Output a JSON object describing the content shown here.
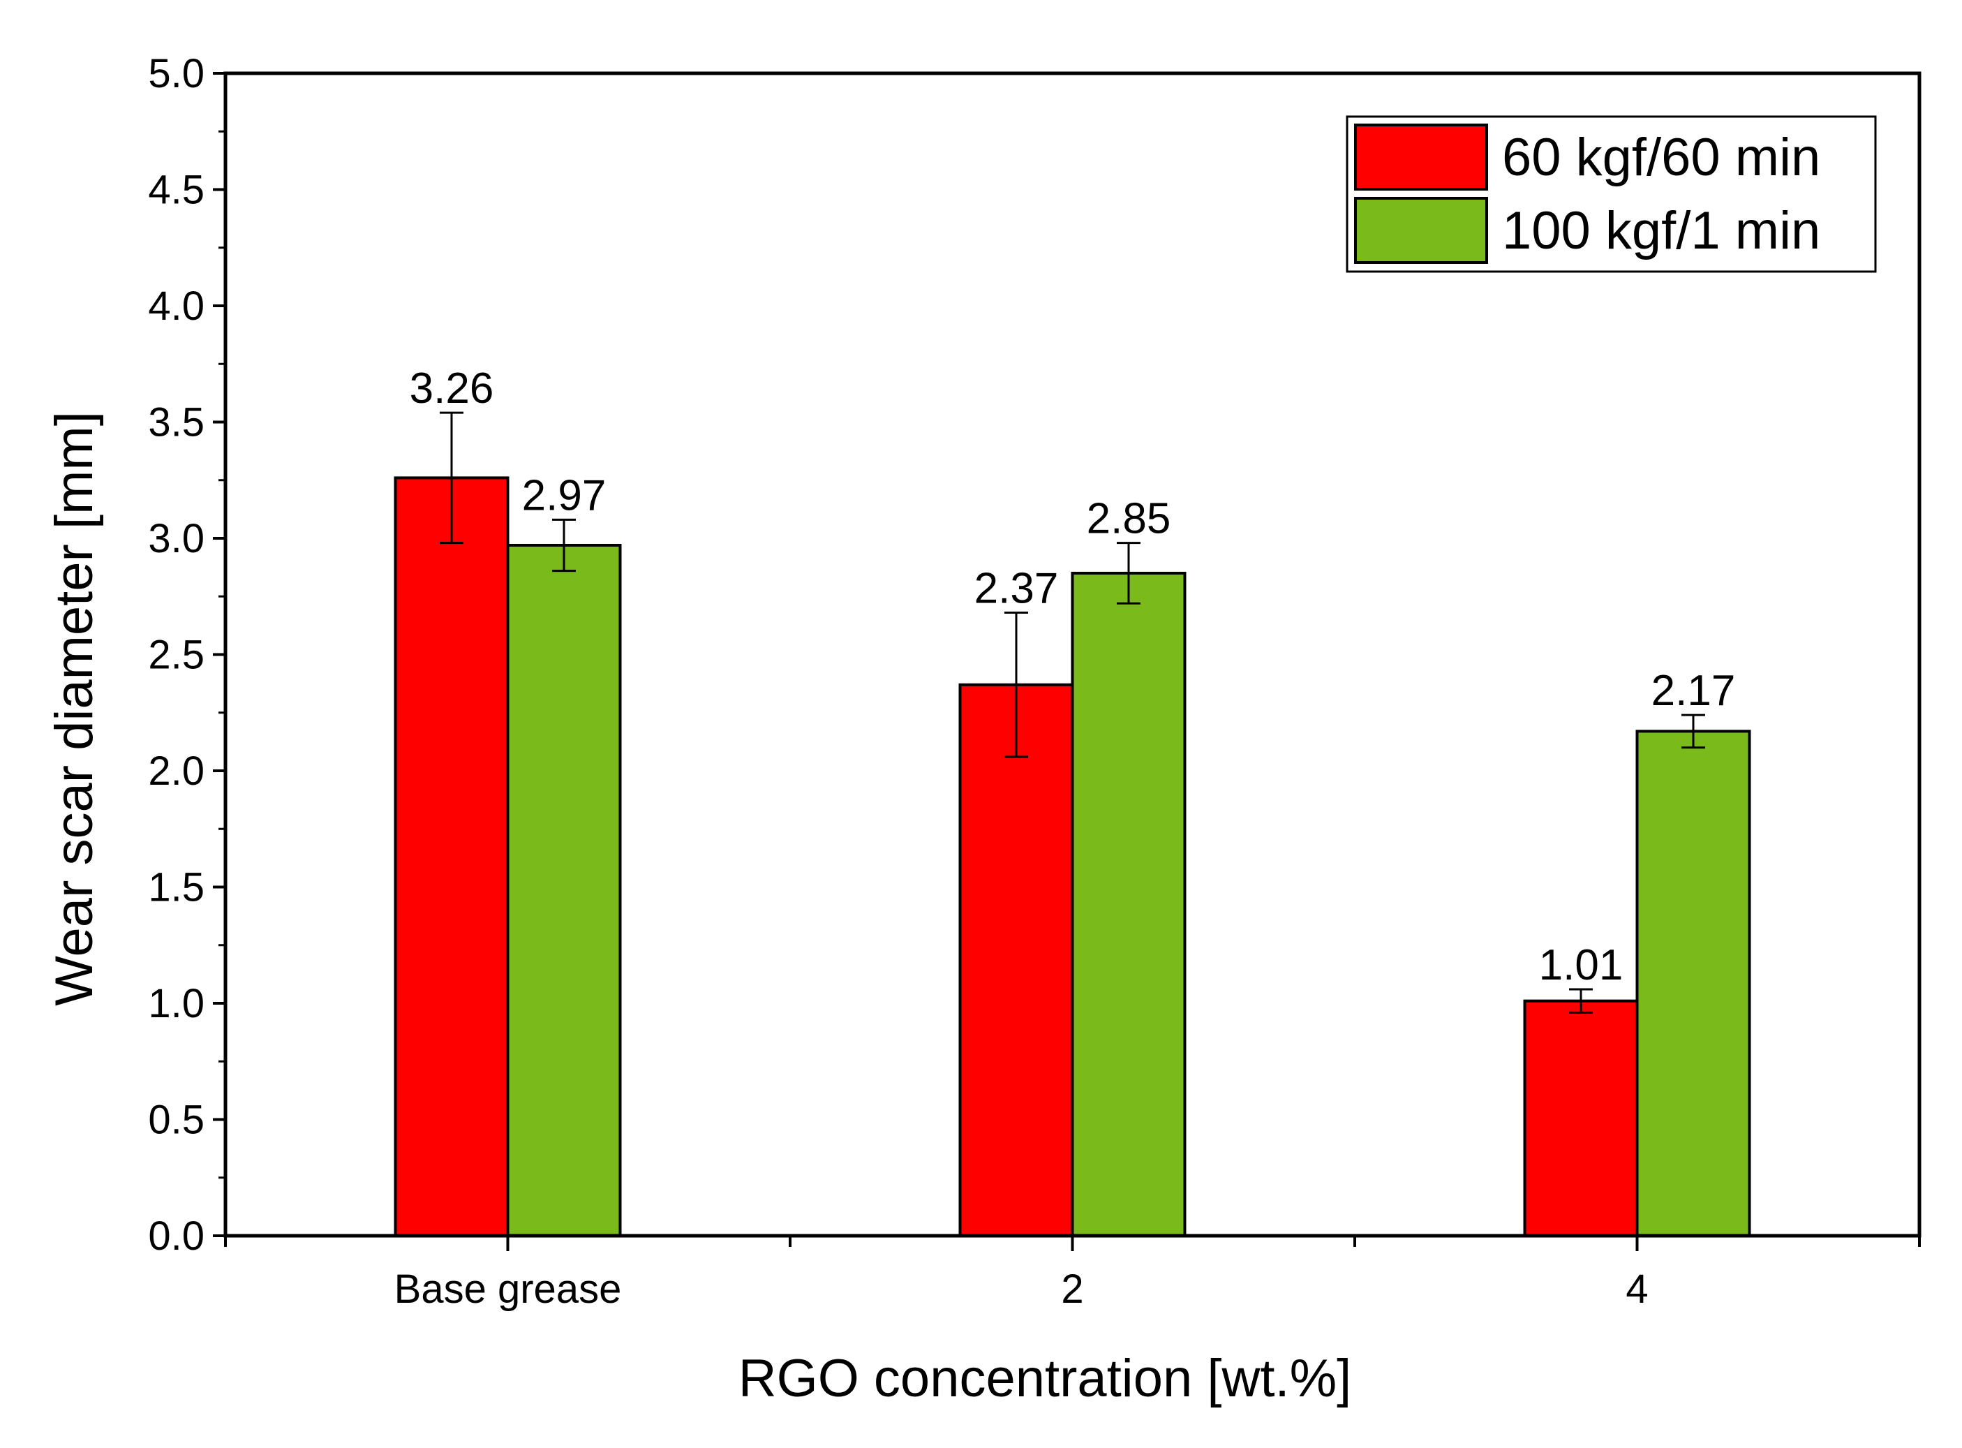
{
  "chart_data": {
    "type": "bar",
    "title": "",
    "xlabel": "RGO concentration [wt.%]",
    "ylabel": "Wear scar diameter [mm]",
    "categories": [
      "Base grease",
      "2",
      "4"
    ],
    "ylim": [
      0,
      5
    ],
    "yticks": [
      "0.0",
      "0.5",
      "1.0",
      "1.5",
      "2.0",
      "2.5",
      "3.0",
      "3.5",
      "4.0",
      "4.5",
      "5.0"
    ],
    "series": [
      {
        "name": "60 kgf/60 min",
        "color": "#ff0000",
        "values": [
          3.26,
          2.37,
          1.01
        ],
        "errors": [
          0.28,
          0.31,
          0.05
        ],
        "labels": [
          "3.26",
          "2.37",
          "1.01"
        ]
      },
      {
        "name": "100 kgf/1 min",
        "color": "#7aba1a",
        "values": [
          2.97,
          2.85,
          2.17
        ],
        "errors": [
          0.11,
          0.13,
          0.07
        ],
        "labels": [
          "2.97",
          "2.85",
          "2.17"
        ]
      }
    ],
    "legend_position": "top-right",
    "grid": false
  }
}
